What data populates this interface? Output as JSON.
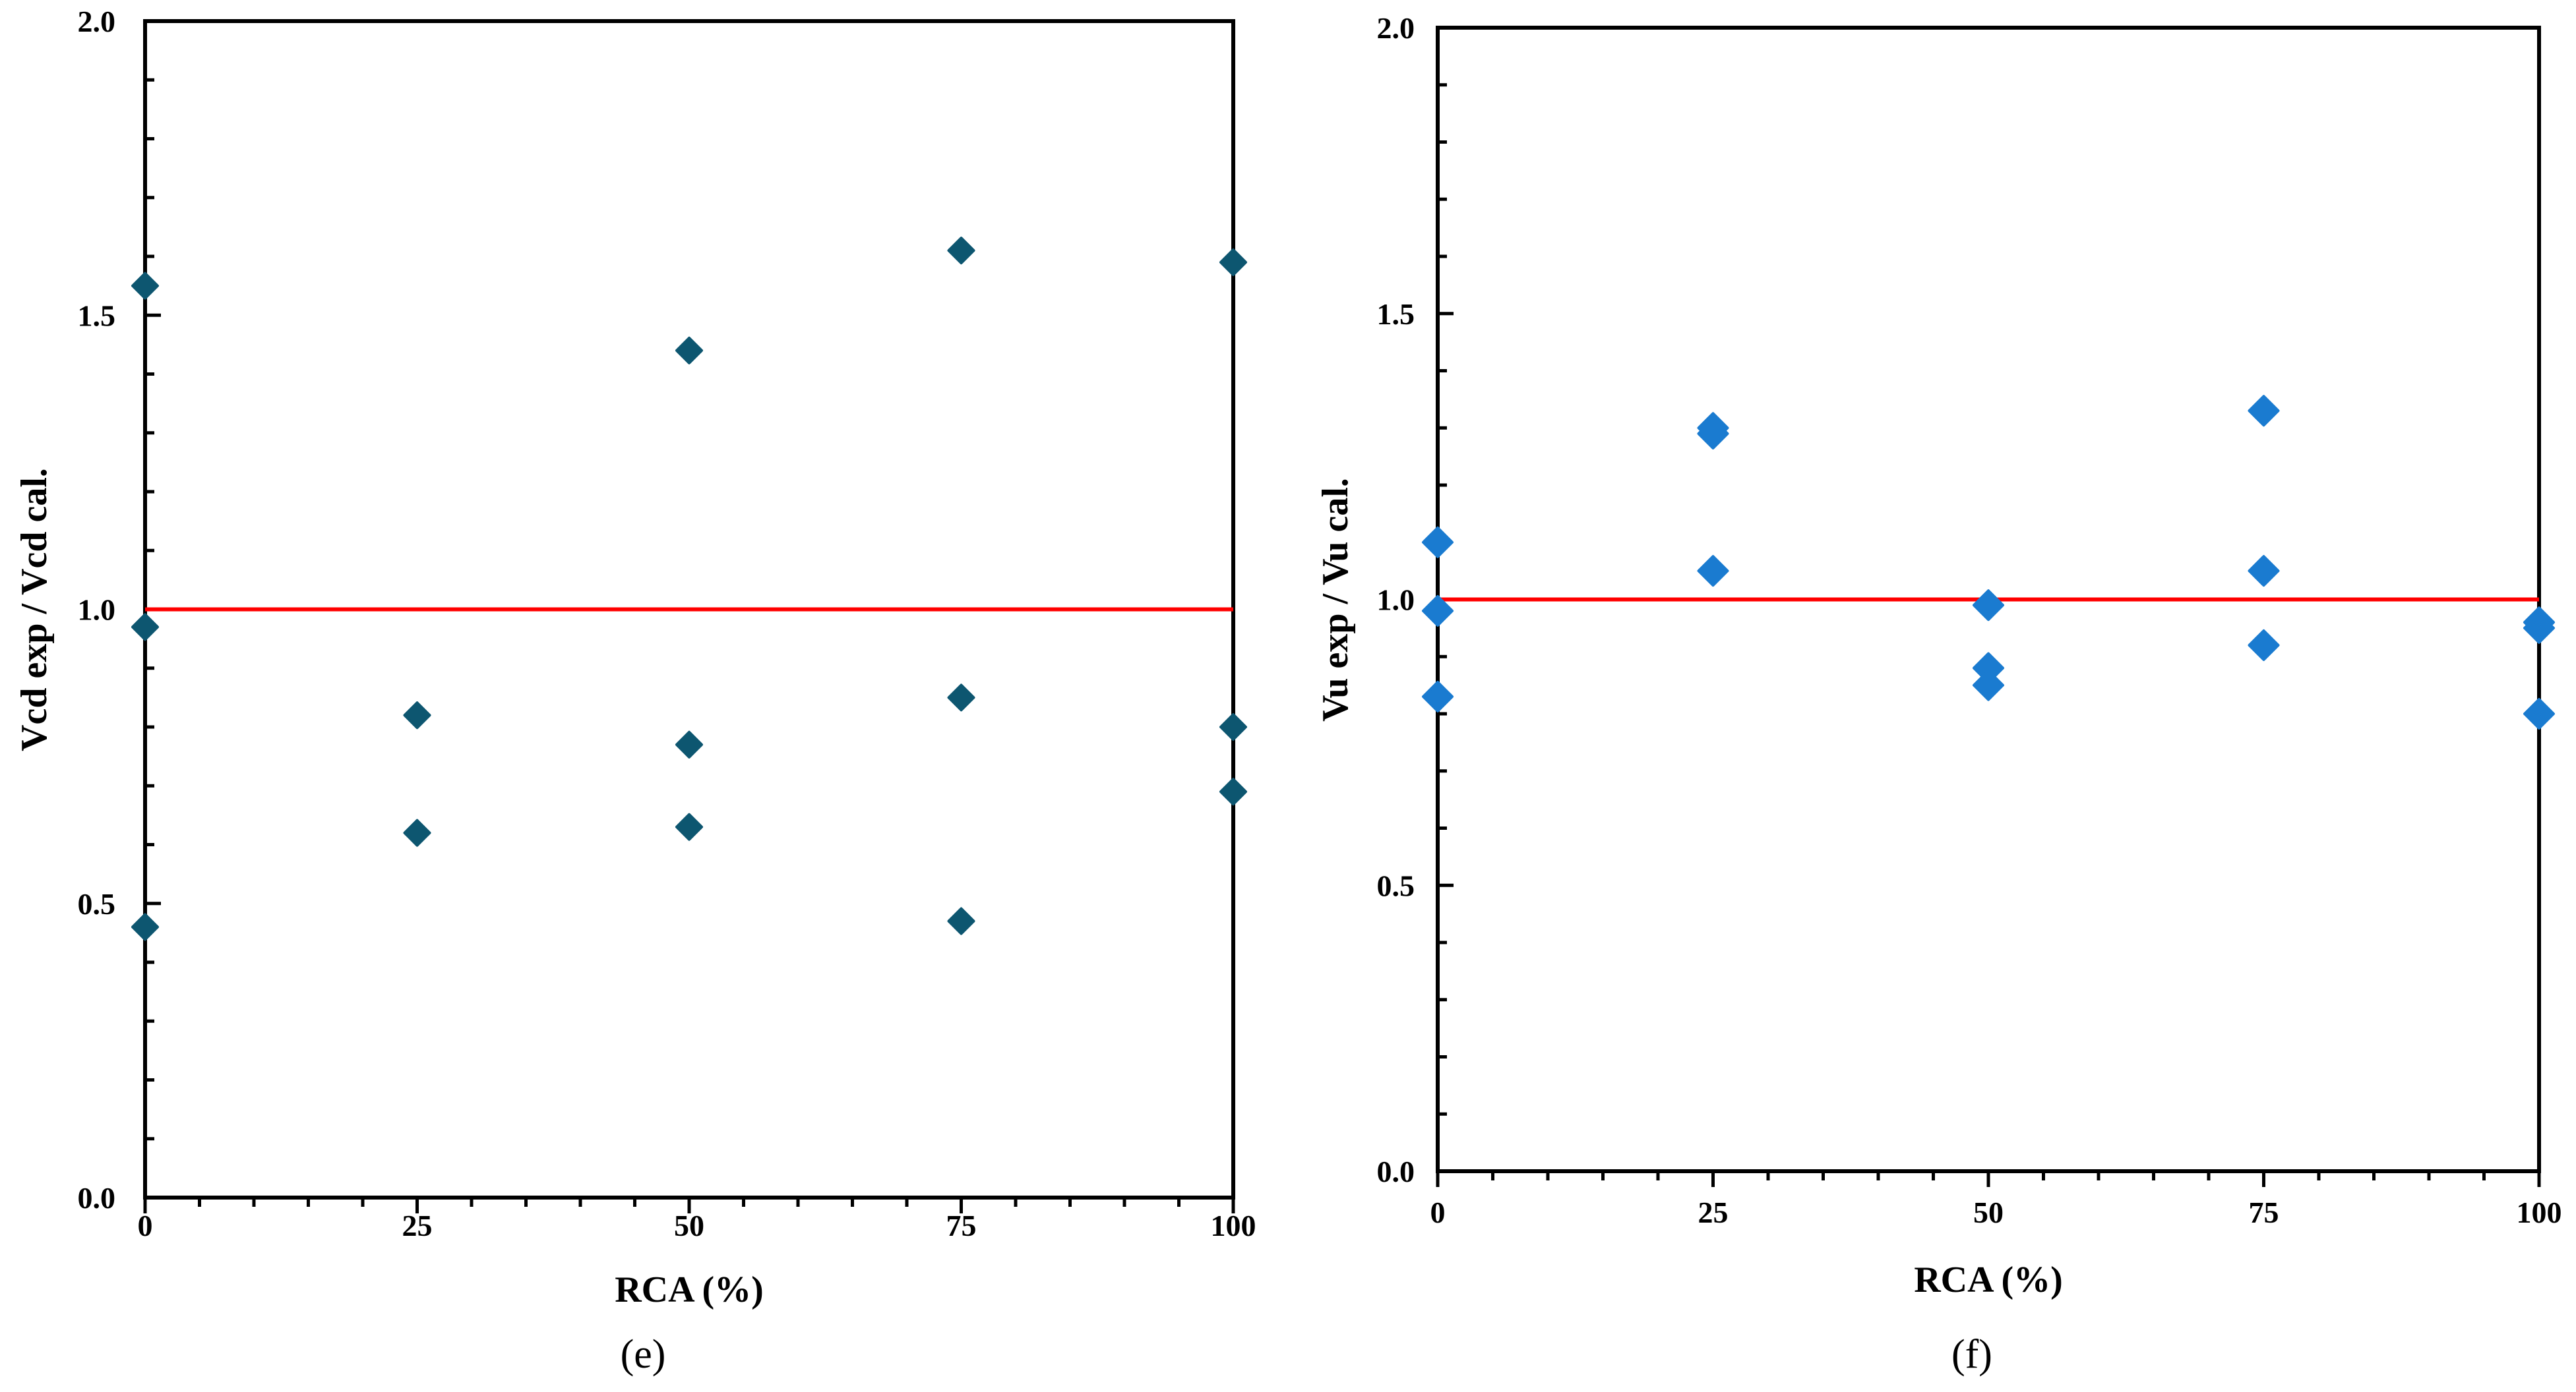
{
  "chart_data": [
    {
      "type": "scatter",
      "panel": "(e)",
      "caption": "(e)",
      "xlabel": "RCA (%)",
      "ylabel": "Vcd exp / Vcd cal.",
      "xlim": [
        0,
        100
      ],
      "ylim": [
        0.0,
        2.0
      ],
      "xticks": [
        0,
        25,
        50,
        75,
        100
      ],
      "xtick_labels": [
        "0",
        "25",
        "50",
        "75",
        "100"
      ],
      "yticks": [
        0.0,
        0.5,
        1.0,
        1.5,
        2.0
      ],
      "ytick_labels": [
        "0.0",
        "0.5",
        "1.0",
        "1.5",
        "2.0"
      ],
      "reference_line": 1.0,
      "reference_color": "#ff0000",
      "marker_color": "#0d5670",
      "grid": false,
      "points": [
        {
          "x": 0,
          "y": 1.55
        },
        {
          "x": 0,
          "y": 0.97
        },
        {
          "x": 0,
          "y": 0.46
        },
        {
          "x": 25,
          "y": 0.82
        },
        {
          "x": 25,
          "y": 0.62
        },
        {
          "x": 50,
          "y": 1.44
        },
        {
          "x": 50,
          "y": 0.77
        },
        {
          "x": 50,
          "y": 0.63
        },
        {
          "x": 75,
          "y": 1.61
        },
        {
          "x": 75,
          "y": 0.85
        },
        {
          "x": 75,
          "y": 0.47
        },
        {
          "x": 100,
          "y": 1.59
        },
        {
          "x": 100,
          "y": 0.8
        },
        {
          "x": 100,
          "y": 0.69
        }
      ]
    },
    {
      "type": "scatter",
      "panel": "(f)",
      "caption": "(f)",
      "xlabel": "RCA (%)",
      "ylabel": "Vu exp / Vu cal.",
      "xlim": [
        0,
        100
      ],
      "ylim": [
        0.0,
        2.0
      ],
      "xticks": [
        0,
        25,
        50,
        75,
        100
      ],
      "xtick_labels": [
        "0",
        "25",
        "50",
        "75",
        "100"
      ],
      "yticks": [
        0.0,
        0.5,
        1.0,
        1.5,
        2.0
      ],
      "ytick_labels": [
        "0.0",
        "0.5",
        "1.0",
        "1.5",
        "2.0"
      ],
      "reference_line": 1.0,
      "reference_color": "#ff0000",
      "marker_color": "#1a7bd0",
      "grid": false,
      "points": [
        {
          "x": 0,
          "y": 1.1
        },
        {
          "x": 0,
          "y": 0.98
        },
        {
          "x": 0,
          "y": 0.83
        },
        {
          "x": 25,
          "y": 1.3
        },
        {
          "x": 25,
          "y": 1.29
        },
        {
          "x": 25,
          "y": 1.05
        },
        {
          "x": 50,
          "y": 0.99
        },
        {
          "x": 50,
          "y": 0.88
        },
        {
          "x": 50,
          "y": 0.85
        },
        {
          "x": 75,
          "y": 1.33
        },
        {
          "x": 75,
          "y": 1.05
        },
        {
          "x": 75,
          "y": 0.92
        },
        {
          "x": 100,
          "y": 0.96
        },
        {
          "x": 100,
          "y": 0.95
        },
        {
          "x": 100,
          "y": 0.8
        }
      ]
    }
  ]
}
